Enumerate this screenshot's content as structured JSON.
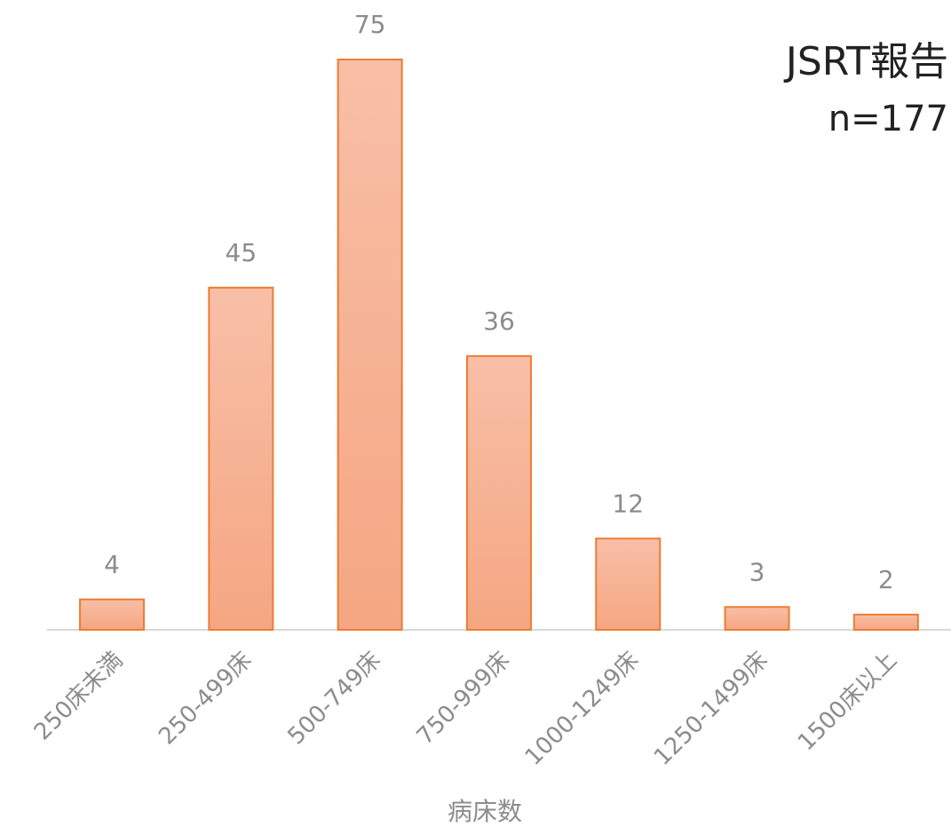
{
  "chart_data": {
    "type": "bar",
    "title": "JSRT報告",
    "subtitle": "n=177",
    "x_label": "病床数",
    "categories": [
      "250床未満",
      "250-499床",
      "500-749床",
      "750-999床",
      "1000-1249床",
      "1250-1499床",
      "1500床以上"
    ],
    "values": [
      4,
      45,
      75,
      36,
      12,
      3,
      2
    ],
    "color": "#ed7d31",
    "ylim": [
      0,
      75
    ],
    "grid": false
  }
}
